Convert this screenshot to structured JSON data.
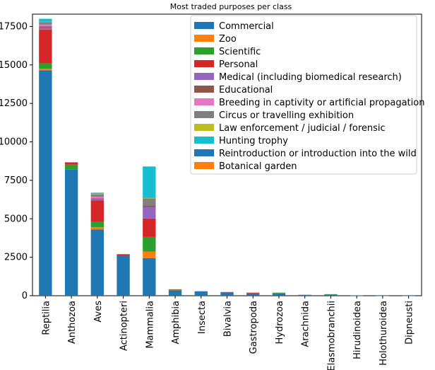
{
  "chart_data": {
    "type": "bar",
    "stacked": true,
    "title": "Most traded purposes per class",
    "xlabel": "",
    "ylabel": "",
    "ylim": [
      0,
      18300
    ],
    "yticks": [
      0,
      2500,
      5000,
      7500,
      10000,
      12500,
      15000,
      17500
    ],
    "ytick_labels": [
      "0",
      "2500",
      "5000",
      "7500",
      "10000",
      "12500",
      "15000",
      "17500"
    ],
    "grid": false,
    "legend_position": "top-right",
    "categories": [
      "Reptilia",
      "Anthozoa",
      "Aves",
      "Actinopteri",
      "Mammalia",
      "Amphibia",
      "Insecta",
      "Bivalvia",
      "Gastropoda",
      "Hydrozoa",
      "Arachnida",
      "Elasmobranchii",
      "Hirudinoidea",
      "Holothuroidea",
      "Dipneusti"
    ],
    "series": [
      {
        "name": "Commercial",
        "color": "#1f77b4",
        "values": [
          14650,
          8200,
          4300,
          2600,
          2450,
          350,
          290,
          190,
          150,
          150,
          60,
          80,
          15,
          8,
          3
        ]
      },
      {
        "name": "Zoo",
        "color": "#ff7f0e",
        "values": [
          100,
          0,
          150,
          0,
          420,
          20,
          0,
          0,
          0,
          0,
          0,
          0,
          0,
          0,
          0
        ]
      },
      {
        "name": "Scientific",
        "color": "#2ca02c",
        "values": [
          350,
          320,
          350,
          0,
          950,
          50,
          0,
          0,
          0,
          50,
          0,
          20,
          0,
          0,
          0
        ]
      },
      {
        "name": "Personal",
        "color": "#d62728",
        "values": [
          2200,
          150,
          1400,
          100,
          1200,
          0,
          0,
          50,
          50,
          0,
          0,
          0,
          0,
          0,
          0
        ]
      },
      {
        "name": "Medical (including biomedical research)",
        "color": "#9467bd",
        "values": [
          130,
          0,
          80,
          0,
          750,
          0,
          0,
          0,
          0,
          0,
          0,
          0,
          0,
          0,
          0
        ]
      },
      {
        "name": "Educational",
        "color": "#8c564b",
        "values": [
          80,
          0,
          40,
          0,
          100,
          0,
          0,
          0,
          0,
          0,
          0,
          0,
          0,
          0,
          0
        ]
      },
      {
        "name": "Breeding in captivity or artificial propagation",
        "color": "#e377c2",
        "values": [
          120,
          0,
          120,
          0,
          0,
          0,
          0,
          0,
          0,
          0,
          0,
          0,
          0,
          0,
          0
        ]
      },
      {
        "name": "Circus or travelling exhibition",
        "color": "#7f7f7f",
        "values": [
          150,
          0,
          150,
          0,
          450,
          0,
          0,
          0,
          0,
          0,
          0,
          0,
          0,
          0,
          0
        ]
      },
      {
        "name": "Law enforcement / judicial / forensic",
        "color": "#bcbd22",
        "values": [
          20,
          0,
          20,
          0,
          30,
          0,
          0,
          0,
          0,
          0,
          0,
          0,
          0,
          0,
          0
        ]
      },
      {
        "name": "Hunting trophy",
        "color": "#17becf",
        "values": [
          200,
          0,
          50,
          0,
          2050,
          0,
          0,
          0,
          0,
          0,
          0,
          0,
          0,
          0,
          0
        ]
      },
      {
        "name": "Reintroduction or introduction into the wild",
        "color": "#1f77b4",
        "values": [
          0,
          0,
          30,
          0,
          0,
          0,
          0,
          0,
          0,
          0,
          0,
          0,
          0,
          0,
          0
        ]
      },
      {
        "name": "Botanical garden",
        "color": "#ff7f0e",
        "values": [
          0,
          0,
          0,
          0,
          0,
          0,
          0,
          0,
          0,
          0,
          0,
          0,
          0,
          0,
          0
        ]
      }
    ]
  }
}
